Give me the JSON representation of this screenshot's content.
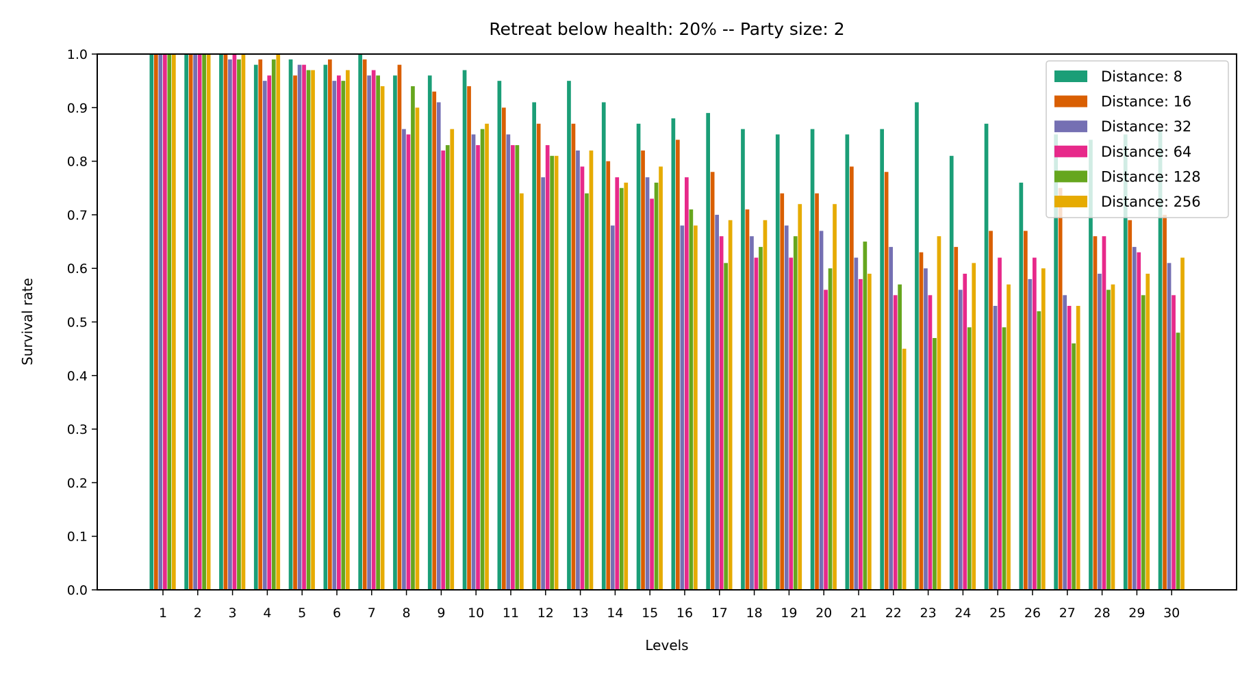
{
  "chart_data": {
    "type": "bar",
    "title": "Retreat below health: 20% -- Party size: 2",
    "xlabel": "Levels",
    "ylabel": "Survival rate",
    "ylim": [
      0,
      1
    ],
    "yticks": [
      "0.0",
      "0.1",
      "0.2",
      "0.3",
      "0.4",
      "0.5",
      "0.6",
      "0.7",
      "0.8",
      "0.9",
      "1.0"
    ],
    "grid": false,
    "legend_position": "top-right",
    "categories": [
      "1",
      "2",
      "3",
      "4",
      "5",
      "6",
      "7",
      "8",
      "9",
      "10",
      "11",
      "12",
      "13",
      "14",
      "15",
      "16",
      "17",
      "18",
      "19",
      "20",
      "21",
      "22",
      "23",
      "24",
      "25",
      "26",
      "27",
      "28",
      "29",
      "30"
    ],
    "series": [
      {
        "name": "Distance: 8",
        "color": "#1b9e77",
        "values": [
          1.0,
          1.0,
          1.0,
          0.98,
          0.99,
          0.98,
          1.0,
          0.96,
          0.96,
          0.97,
          0.95,
          0.91,
          0.95,
          0.91,
          0.87,
          0.88,
          0.89,
          0.86,
          0.85,
          0.86,
          0.85,
          0.86,
          0.91,
          0.81,
          0.87,
          0.76,
          0.85,
          0.84,
          0.85,
          0.86
        ]
      },
      {
        "name": "Distance: 16",
        "color": "#d95f02",
        "values": [
          1.0,
          1.0,
          1.0,
          0.99,
          0.96,
          0.99,
          0.99,
          0.98,
          0.93,
          0.94,
          0.9,
          0.87,
          0.87,
          0.8,
          0.82,
          0.84,
          0.78,
          0.71,
          0.74,
          0.74,
          0.79,
          0.78,
          0.63,
          0.64,
          0.67,
          0.67,
          0.75,
          0.66,
          0.69,
          0.7
        ]
      },
      {
        "name": "Distance: 32",
        "color": "#7570b3",
        "values": [
          1.0,
          1.0,
          0.99,
          0.95,
          0.98,
          0.95,
          0.96,
          0.86,
          0.91,
          0.85,
          0.85,
          0.77,
          0.82,
          0.68,
          0.77,
          0.68,
          0.7,
          0.66,
          0.68,
          0.67,
          0.62,
          0.64,
          0.6,
          0.56,
          0.53,
          0.58,
          0.55,
          0.59,
          0.64,
          0.61
        ]
      },
      {
        "name": "Distance: 64",
        "color": "#e7298a",
        "values": [
          1.0,
          1.0,
          1.0,
          0.96,
          0.98,
          0.96,
          0.97,
          0.85,
          0.82,
          0.83,
          0.83,
          0.83,
          0.79,
          0.77,
          0.73,
          0.77,
          0.66,
          0.62,
          0.62,
          0.56,
          0.58,
          0.55,
          0.55,
          0.59,
          0.62,
          0.62,
          0.53,
          0.66,
          0.63,
          0.55
        ]
      },
      {
        "name": "Distance: 128",
        "color": "#66a61e",
        "values": [
          1.0,
          1.0,
          0.99,
          0.99,
          0.97,
          0.95,
          0.96,
          0.94,
          0.83,
          0.86,
          0.83,
          0.81,
          0.74,
          0.75,
          0.76,
          0.71,
          0.61,
          0.64,
          0.66,
          0.6,
          0.65,
          0.57,
          0.47,
          0.49,
          0.49,
          0.52,
          0.46,
          0.56,
          0.55,
          0.48
        ]
      },
      {
        "name": "Distance: 256",
        "color": "#e6ab02",
        "values": [
          1.0,
          1.0,
          1.0,
          1.0,
          0.97,
          0.97,
          0.94,
          0.9,
          0.86,
          0.87,
          0.74,
          0.81,
          0.82,
          0.76,
          0.79,
          0.68,
          0.69,
          0.69,
          0.72,
          0.72,
          0.59,
          0.45,
          0.66,
          0.61,
          0.57,
          0.6,
          0.53,
          0.57,
          0.59,
          0.62
        ]
      }
    ]
  }
}
